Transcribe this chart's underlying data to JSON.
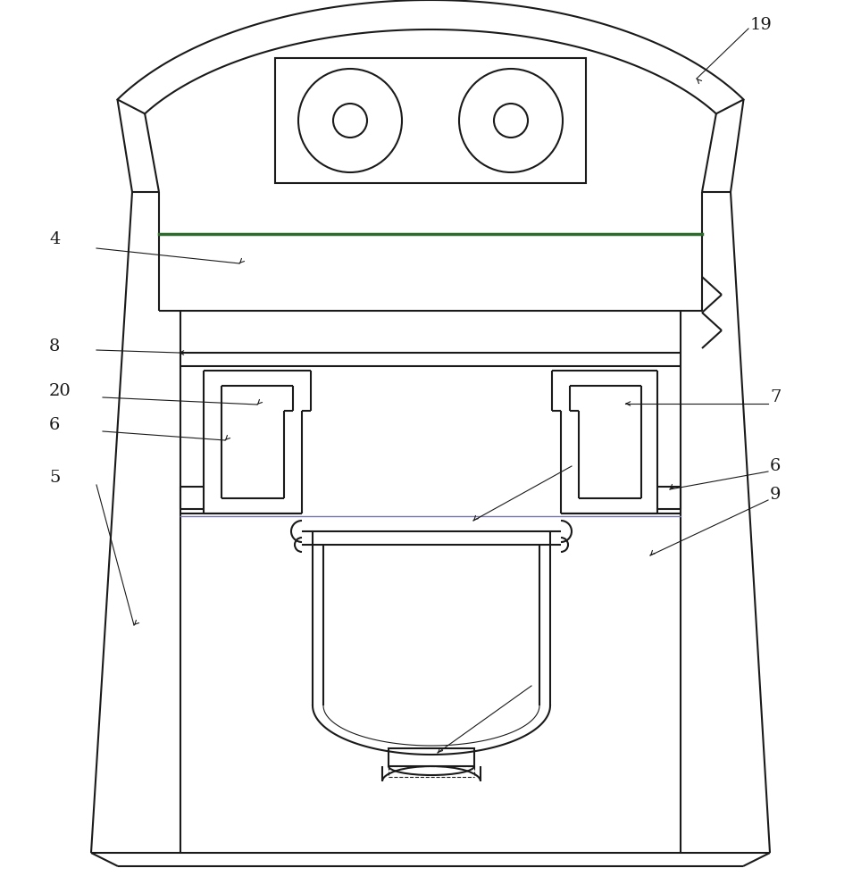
{
  "bg_color": "#ffffff",
  "line_color": "#1a1a1a",
  "green_color": "#2d6a2d",
  "line_width": 1.5,
  "thin_line": 0.8,
  "annotation_lw": 0.8
}
